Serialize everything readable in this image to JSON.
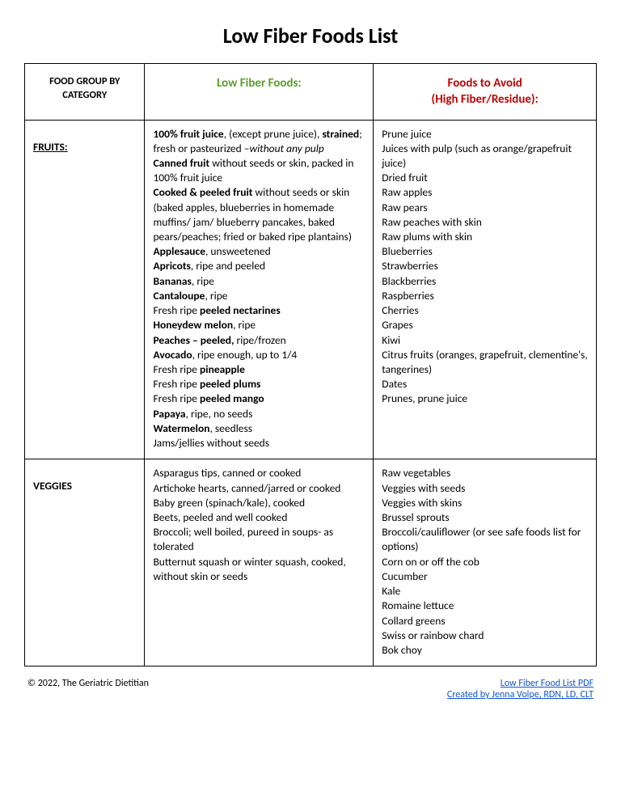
{
  "document": {
    "title": "Low Fiber Foods List",
    "background_color": "#ffffff",
    "text_color": "#000000",
    "accent_green": "#5aa02c",
    "accent_red": "#c00000",
    "link_color": "#1155cc",
    "border_color": "#000000"
  },
  "table": {
    "header": {
      "category": "FOOD GROUP BY CATEGORY",
      "low_fiber": "Low Fiber Foods:",
      "avoid_line1": "Foods to Avoid",
      "avoid_line2": "(High Fiber/Residue):"
    },
    "rows": [
      {
        "category_label": "FRUITS:",
        "category_underline": true,
        "low_fiber_html": "<b>100% fruit juice</b>, (except prune juice), <b>strained</b>; fresh or pasteurized –<i>without any pulp</i><br><b>Canned fruit</b> without seeds or skin, packed in 100% fruit juice<br><b>Cooked &amp; peeled fruit</b> without seeds or skin (baked apples, blueberries in homemade muffins/ jam/ blueberry pancakes, baked pears/peaches; fried or baked ripe plantains)<br><b>Applesauce</b>, unsweetened<br><b>Apricots</b>, ripe and peeled<br><b>Bananas</b>, ripe<br><b>Cantaloupe</b>, ripe<br>Fresh ripe <b>peeled nectarines</b><br><b>Honeydew melon</b>, ripe<br><b>Peaches – peeled,</b> ripe/frozen<br><b>Avocado</b>, ripe enough, up to 1/4<br>Fresh ripe <b>pineapple</b><br>Fresh ripe <b>peeled plums</b><br>Fresh ripe <b>peeled mango</b><br><b>Papaya</b>, ripe, no seeds<br><b>Watermelon</b>, seedless<br>Jams/jellies without seeds",
        "avoid_html": "Prune juice<br>Juices with pulp (such as orange/grapefruit juice)<br>Dried fruit<br>Raw apples<br>Raw pears<br>Raw peaches with skin<br>Raw plums with skin<br>Blueberries<br>Strawberries<br>Blackberries<br>Raspberries<br>Cherries<br>Grapes<br>Kiwi<br>Citrus fruits (oranges, grapefruit, clementine's, tangerines)<br>Dates<br>Prunes, prune juice"
      },
      {
        "category_label": "VEGGIES",
        "category_underline": false,
        "low_fiber_html": "Asparagus tips, canned or cooked<br>Artichoke hearts, canned/jarred or cooked<br>Baby green (spinach/kale), cooked<br>Beets, peeled and well cooked<br>Broccoli; well boiled, pureed in soups- as tolerated<br>Butternut squash or winter squash, cooked, without skin or seeds",
        "avoid_html": "Raw vegetables<br>Veggies with seeds<br>Veggies with skins<br>Brussel sprouts<br>Broccoli/cauliflower (or see safe foods list for options)<br>Corn on or off the cob<br>Cucumber<br>Kale<br>Romaine lettuce<br>Collard greens<br>Swiss or rainbow chard<br>Bok choy"
      }
    ]
  },
  "footer": {
    "copyright": "© 2022, The Geriatric Dietitian",
    "link1": "Low Fiber Food List PDF",
    "link2": "Created by Jenna Volpe, RDN, LD, CLT"
  }
}
